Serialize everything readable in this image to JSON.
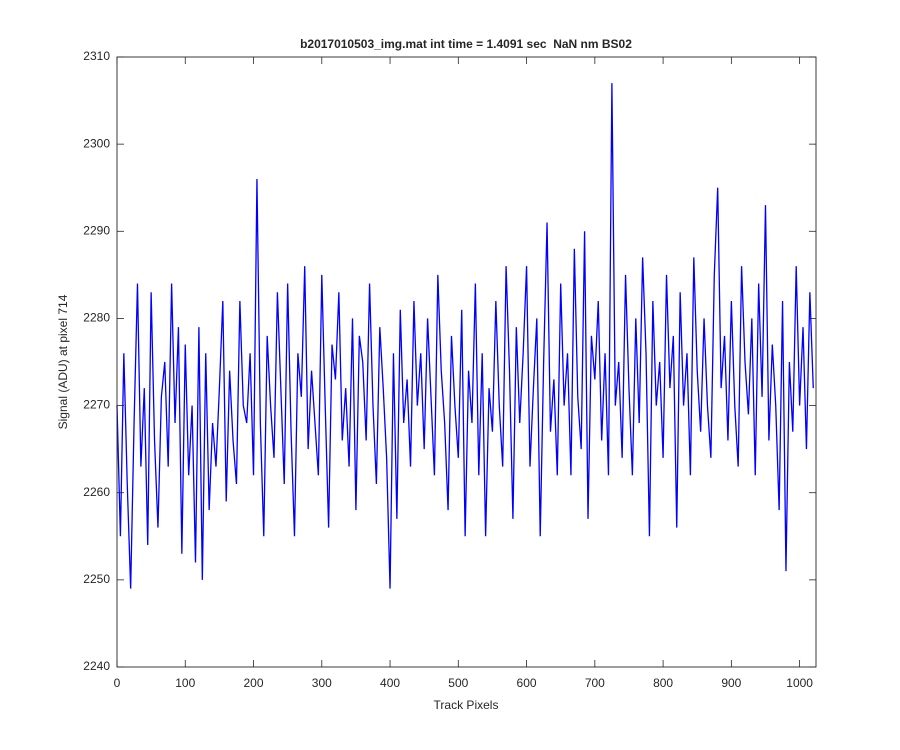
{
  "chart_data": {
    "type": "line",
    "title": "b2017010503_img.mat int time = 1.4091 sec  NaN nm BS02",
    "x_label": "Track Pixels",
    "y_label": "Signal (ADU) at pixel 714",
    "x": [
      0,
      5,
      10,
      15,
      20,
      25,
      30,
      35,
      40,
      45,
      50,
      55,
      60,
      65,
      70,
      75,
      80,
      85,
      90,
      95,
      100,
      105,
      110,
      115,
      120,
      125,
      130,
      135,
      140,
      145,
      150,
      155,
      160,
      165,
      170,
      175,
      180,
      185,
      190,
      195,
      200,
      205,
      210,
      215,
      220,
      225,
      230,
      235,
      240,
      245,
      250,
      255,
      260,
      265,
      270,
      275,
      280,
      285,
      290,
      295,
      300,
      305,
      310,
      315,
      320,
      325,
      330,
      335,
      340,
      345,
      350,
      355,
      360,
      365,
      370,
      375,
      380,
      385,
      390,
      395,
      400,
      405,
      410,
      415,
      420,
      425,
      430,
      435,
      440,
      445,
      450,
      455,
      460,
      465,
      470,
      475,
      480,
      485,
      490,
      495,
      500,
      505,
      510,
      515,
      520,
      525,
      530,
      535,
      540,
      545,
      550,
      555,
      560,
      565,
      570,
      575,
      580,
      585,
      590,
      595,
      600,
      605,
      610,
      615,
      620,
      625,
      630,
      635,
      640,
      645,
      650,
      655,
      660,
      665,
      670,
      675,
      680,
      685,
      690,
      695,
      700,
      705,
      710,
      715,
      720,
      725,
      730,
      735,
      740,
      745,
      750,
      755,
      760,
      765,
      770,
      775,
      780,
      785,
      790,
      795,
      800,
      805,
      810,
      815,
      820,
      825,
      830,
      835,
      840,
      845,
      850,
      855,
      860,
      865,
      870,
      875,
      880,
      885,
      890,
      895,
      900,
      905,
      910,
      915,
      920,
      925,
      930,
      935,
      940,
      945,
      950,
      955,
      960,
      965,
      970,
      975,
      980,
      985,
      990,
      995,
      1000,
      1005,
      1010,
      1015,
      1020
    ],
    "series": [
      {
        "color": "#0000ff",
        "values": [
          2270,
          2255,
          2276,
          2261,
          2249,
          2268,
          2284,
          2263,
          2272,
          2254,
          2283,
          2266,
          2256,
          2271,
          2275,
          2263,
          2284,
          2268,
          2279,
          2253,
          2277,
          2262,
          2270,
          2252,
          2279,
          2250,
          2276,
          2258,
          2268,
          2263,
          2272,
          2282,
          2259,
          2274,
          2266,
          2261,
          2282,
          2270,
          2268,
          2276,
          2262,
          2296,
          2268,
          2255,
          2278,
          2270,
          2264,
          2283,
          2272,
          2261,
          2284,
          2267,
          2255,
          2276,
          2271,
          2286,
          2265,
          2274,
          2268,
          2262,
          2285,
          2270,
          2256,
          2277,
          2273,
          2283,
          2266,
          2272,
          2263,
          2280,
          2258,
          2278,
          2275,
          2266,
          2284,
          2270,
          2261,
          2279,
          2272,
          2264,
          2249,
          2276,
          2257,
          2281,
          2268,
          2273,
          2263,
          2282,
          2270,
          2276,
          2265,
          2280,
          2271,
          2262,
          2285,
          2274,
          2268,
          2258,
          2278,
          2270,
          2264,
          2281,
          2255,
          2274,
          2268,
          2284,
          2262,
          2276,
          2255,
          2272,
          2267,
          2282,
          2270,
          2263,
          2286,
          2274,
          2257,
          2279,
          2268,
          2276,
          2286,
          2263,
          2272,
          2280,
          2255,
          2275,
          2291,
          2267,
          2273,
          2262,
          2284,
          2270,
          2276,
          2262,
          2288,
          2271,
          2265,
          2290,
          2257,
          2278,
          2273,
          2282,
          2266,
          2276,
          2262,
          2307,
          2270,
          2275,
          2264,
          2285,
          2272,
          2262,
          2280,
          2268,
          2287,
          2276,
          2255,
          2282,
          2270,
          2275,
          2264,
          2285,
          2272,
          2278,
          2256,
          2283,
          2270,
          2276,
          2262,
          2287,
          2274,
          2267,
          2280,
          2270,
          2264,
          2285,
          2295,
          2272,
          2278,
          2266,
          2282,
          2270,
          2263,
          2286,
          2275,
          2269,
          2280,
          2262,
          2284,
          2271,
          2293,
          2266,
          2277,
          2270,
          2258,
          2282,
          2251,
          2275,
          2267,
          2286,
          2270,
          2279,
          2265,
          2283,
          2272
        ]
      }
    ],
    "xlim": [
      0,
      1024
    ],
    "ylim": [
      2240,
      2310
    ],
    "xticks": [
      0,
      100,
      200,
      300,
      400,
      500,
      600,
      700,
      800,
      900,
      1000
    ],
    "yticks": [
      2240,
      2250,
      2260,
      2270,
      2280,
      2290,
      2300,
      2310
    ]
  }
}
